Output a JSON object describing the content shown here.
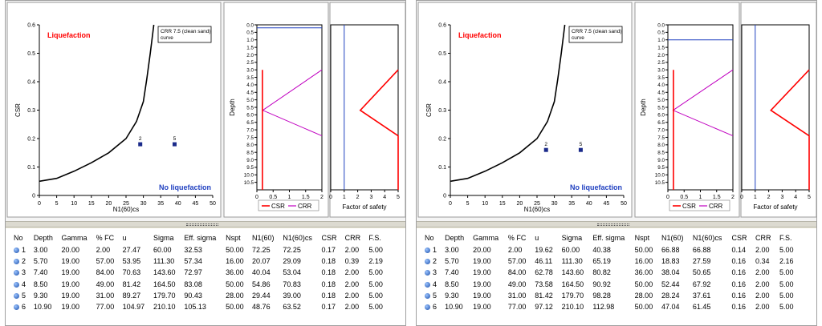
{
  "colors": {
    "csr": "#c000c0",
    "crr": "#ff0000",
    "fs": "#ff0000",
    "unity": "#2040c0",
    "point": "#1a2a8a",
    "curve": "#000000",
    "liq_label": "#ff0000",
    "noliq_label": "#2040c0"
  },
  "panels": [
    {
      "name": "left",
      "chart_data": [
        {
          "type": "scatter",
          "title": "",
          "xlabel": "N1(60)cs",
          "ylabel": "CSR",
          "xlim": [
            0,
            50
          ],
          "ylim": [
            0,
            0.6
          ],
          "xticks": [
            "0",
            "5",
            "10",
            "15",
            "20",
            "25",
            "30",
            "35",
            "40",
            "45",
            "50"
          ],
          "yticks": [
            "0",
            "0.1",
            "0.2",
            "0.3",
            "0.4",
            "0.5",
            "0.6"
          ],
          "legend": "CRR 7.5 (clean sand) curve",
          "label_liq": "Liquefaction",
          "label_noliq": "No liquefaction",
          "curve": [
            [
              0,
              0.05
            ],
            [
              5,
              0.06
            ],
            [
              10,
              0.085
            ],
            [
              15,
              0.115
            ],
            [
              20,
              0.15
            ],
            [
              25,
              0.2
            ],
            [
              28,
              0.26
            ],
            [
              30,
              0.33
            ],
            [
              31,
              0.41
            ],
            [
              32,
              0.5
            ],
            [
              33,
              0.6
            ]
          ],
          "points": [
            {
              "label": "2",
              "x": 29.1,
              "y": 0.18
            },
            {
              "label": "5",
              "x": 39.0,
              "y": 0.18
            }
          ]
        },
        {
          "type": "line",
          "xlabel": "",
          "ylabel": "Depth",
          "xlim": [
            0,
            2
          ],
          "ylim": [
            0,
            11
          ],
          "xticks": [
            "0",
            "0.5",
            "1",
            "1.5",
            "2"
          ],
          "yticks": [
            "0.0",
            "0.5",
            "1.0",
            "1.5",
            "2.0",
            "2.5",
            "3.0",
            "3.5",
            "4.0",
            "4.5",
            "5.0",
            "5.5",
            "6.0",
            "6.5",
            "7.0",
            "7.5",
            "8.0",
            "8.5",
            "9.0",
            "9.5",
            "10.0",
            "10.5"
          ],
          "legend": [
            "CSR",
            "CRR"
          ],
          "water_table": 0.2,
          "series": [
            {
              "name": "CSR",
              "points": [
                [
                  2.0,
                  3.0
                ],
                [
                  0.18,
                  5.7
                ],
                [
                  2.0,
                  7.4
                ]
              ]
            },
            {
              "name": "CRR",
              "points": [
                [
                  0.17,
                  3.0
                ],
                [
                  0.17,
                  11.0
                ]
              ]
            }
          ]
        },
        {
          "type": "line",
          "xlabel": "Factor of safety",
          "ylabel": "",
          "xlim": [
            0,
            5
          ],
          "ylim": [
            0,
            11
          ],
          "xticks": [
            "0",
            "1",
            "2",
            "3",
            "4",
            "5"
          ],
          "unity": 1,
          "series": [
            {
              "name": "F.S.",
              "points": [
                [
                  5.0,
                  3.0
                ],
                [
                  2.19,
                  5.7
                ],
                [
                  5.0,
                  7.4
                ],
                [
                  5.0,
                  11.0
                ]
              ]
            }
          ]
        }
      ],
      "table": {
        "headers": [
          "No",
          "Depth",
          "Gamma",
          "% FC",
          "u",
          "Sigma",
          "Eff. sigma",
          "Nspt",
          "N1(60)",
          "N1(60)cs",
          "CSR",
          "CRR",
          "F.S."
        ],
        "rows": [
          [
            "1",
            "3.00",
            "20.00",
            "2.00",
            "27.47",
            "60.00",
            "32.53",
            "50.00",
            "72.25",
            "72.25",
            "0.17",
            "2.00",
            "5.00"
          ],
          [
            "2",
            "5.70",
            "19.00",
            "57.00",
            "53.95",
            "111.30",
            "57.34",
            "16.00",
            "20.07",
            "29.09",
            "0.18",
            "0.39",
            "2.19"
          ],
          [
            "3",
            "7.40",
            "19.00",
            "84.00",
            "70.63",
            "143.60",
            "72.97",
            "36.00",
            "40.04",
            "53.04",
            "0.18",
            "2.00",
            "5.00"
          ],
          [
            "4",
            "8.50",
            "19.00",
            "49.00",
            "81.42",
            "164.50",
            "83.08",
            "50.00",
            "54.86",
            "70.83",
            "0.18",
            "2.00",
            "5.00"
          ],
          [
            "5",
            "9.30",
            "19.00",
            "31.00",
            "89.27",
            "179.70",
            "90.43",
            "28.00",
            "29.44",
            "39.00",
            "0.18",
            "2.00",
            "5.00"
          ],
          [
            "6",
            "10.90",
            "19.00",
            "77.00",
            "104.97",
            "210.10",
            "105.13",
            "50.00",
            "48.76",
            "63.52",
            "0.17",
            "2.00",
            "5.00"
          ]
        ]
      }
    },
    {
      "name": "right",
      "chart_data": [
        {
          "type": "scatter",
          "title": "",
          "xlabel": "N1(60)cs",
          "ylabel": "CSR",
          "xlim": [
            0,
            50
          ],
          "ylim": [
            0,
            0.6
          ],
          "xticks": [
            "0",
            "5",
            "10",
            "15",
            "20",
            "25",
            "30",
            "35",
            "40",
            "45",
            "50"
          ],
          "yticks": [
            "0",
            "0.1",
            "0.2",
            "0.3",
            "0.4",
            "0.5",
            "0.6"
          ],
          "legend": "CRR 7.5 (clean sand) curve",
          "label_liq": "Liquefaction",
          "label_noliq": "No liquefaction",
          "curve": [
            [
              0,
              0.05
            ],
            [
              5,
              0.06
            ],
            [
              10,
              0.085
            ],
            [
              15,
              0.115
            ],
            [
              20,
              0.15
            ],
            [
              25,
              0.2
            ],
            [
              28,
              0.26
            ],
            [
              30,
              0.33
            ],
            [
              31,
              0.41
            ],
            [
              32,
              0.5
            ],
            [
              33,
              0.6
            ]
          ],
          "points": [
            {
              "label": "2",
              "x": 27.6,
              "y": 0.16
            },
            {
              "label": "5",
              "x": 37.6,
              "y": 0.16
            }
          ]
        },
        {
          "type": "line",
          "xlabel": "",
          "ylabel": "Depth",
          "xlim": [
            0,
            2
          ],
          "ylim": [
            0,
            11
          ],
          "xticks": [
            "0",
            "0.5",
            "1",
            "1.5",
            "2"
          ],
          "yticks": [
            "0.0",
            "0.5",
            "1.0",
            "1.5",
            "2.0",
            "2.5",
            "3.0",
            "3.5",
            "4.0",
            "4.5",
            "5.0",
            "5.5",
            "6.0",
            "6.5",
            "7.0",
            "7.5",
            "8.0",
            "8.5",
            "9.0",
            "9.5",
            "10.0",
            "10.5"
          ],
          "legend": [
            "CSR",
            "CRR"
          ],
          "water_table": 1.0,
          "series": [
            {
              "name": "CSR",
              "points": [
                [
                  2.0,
                  3.0
                ],
                [
                  0.16,
                  5.7
                ],
                [
                  2.0,
                  7.4
                ]
              ]
            },
            {
              "name": "CRR",
              "points": [
                [
                  0.17,
                  3.0
                ],
                [
                  0.17,
                  11.0
                ]
              ]
            }
          ]
        },
        {
          "type": "line",
          "xlabel": "Factor of safety",
          "ylabel": "",
          "xlim": [
            0,
            5
          ],
          "ylim": [
            0,
            11
          ],
          "xticks": [
            "0",
            "1",
            "2",
            "3",
            "4",
            "5"
          ],
          "unity": 1,
          "series": [
            {
              "name": "F.S.",
              "points": [
                [
                  5.0,
                  3.0
                ],
                [
                  2.16,
                  5.7
                ],
                [
                  5.0,
                  7.4
                ],
                [
                  5.0,
                  11.0
                ]
              ]
            }
          ]
        }
      ],
      "table": {
        "headers": [
          "No",
          "Depth",
          "Gamma",
          "% FC",
          "u",
          "Sigma",
          "Eff. sigma",
          "Nspt",
          "N1(60)",
          "N1(60)cs",
          "CSR",
          "CRR",
          "F.S."
        ],
        "rows": [
          [
            "1",
            "3.00",
            "20.00",
            "2.00",
            "19.62",
            "60.00",
            "40.38",
            "50.00",
            "66.88",
            "66.88",
            "0.14",
            "2.00",
            "5.00"
          ],
          [
            "2",
            "5.70",
            "19.00",
            "57.00",
            "46.11",
            "111.30",
            "65.19",
            "16.00",
            "18.83",
            "27.59",
            "0.16",
            "0.34",
            "2.16"
          ],
          [
            "3",
            "7.40",
            "19.00",
            "84.00",
            "62.78",
            "143.60",
            "80.82",
            "36.00",
            "38.04",
            "50.65",
            "0.16",
            "2.00",
            "5.00"
          ],
          [
            "4",
            "8.50",
            "19.00",
            "49.00",
            "73.58",
            "164.50",
            "90.92",
            "50.00",
            "52.44",
            "67.92",
            "0.16",
            "2.00",
            "5.00"
          ],
          [
            "5",
            "9.30",
            "19.00",
            "31.00",
            "81.42",
            "179.70",
            "98.28",
            "28.00",
            "28.24",
            "37.61",
            "0.16",
            "2.00",
            "5.00"
          ],
          [
            "6",
            "10.90",
            "19.00",
            "77.00",
            "97.12",
            "210.10",
            "112.98",
            "50.00",
            "47.04",
            "61.45",
            "0.16",
            "2.00",
            "5.00"
          ]
        ]
      }
    }
  ]
}
